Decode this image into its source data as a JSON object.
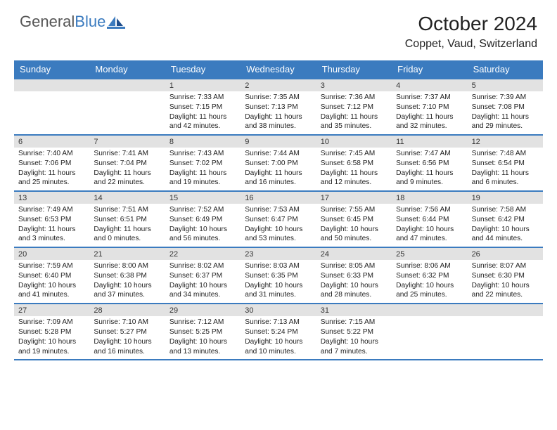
{
  "logo": {
    "word1": "General",
    "word2": "Blue"
  },
  "title": "October 2024",
  "location": "Coppet, Vaud, Switzerland",
  "colors": {
    "brand_blue": "#3b7bbf",
    "header_text": "#555555",
    "strip_bg": "#e2e2e2",
    "text": "#222222",
    "white": "#ffffff"
  },
  "days_of_week": [
    "Sunday",
    "Monday",
    "Tuesday",
    "Wednesday",
    "Thursday",
    "Friday",
    "Saturday"
  ],
  "weeks": [
    [
      {
        "num": "",
        "sunrise": "",
        "sunset": "",
        "daylight": ""
      },
      {
        "num": "",
        "sunrise": "",
        "sunset": "",
        "daylight": ""
      },
      {
        "num": "1",
        "sunrise": "Sunrise: 7:33 AM",
        "sunset": "Sunset: 7:15 PM",
        "daylight": "Daylight: 11 hours and 42 minutes."
      },
      {
        "num": "2",
        "sunrise": "Sunrise: 7:35 AM",
        "sunset": "Sunset: 7:13 PM",
        "daylight": "Daylight: 11 hours and 38 minutes."
      },
      {
        "num": "3",
        "sunrise": "Sunrise: 7:36 AM",
        "sunset": "Sunset: 7:12 PM",
        "daylight": "Daylight: 11 hours and 35 minutes."
      },
      {
        "num": "4",
        "sunrise": "Sunrise: 7:37 AM",
        "sunset": "Sunset: 7:10 PM",
        "daylight": "Daylight: 11 hours and 32 minutes."
      },
      {
        "num": "5",
        "sunrise": "Sunrise: 7:39 AM",
        "sunset": "Sunset: 7:08 PM",
        "daylight": "Daylight: 11 hours and 29 minutes."
      }
    ],
    [
      {
        "num": "6",
        "sunrise": "Sunrise: 7:40 AM",
        "sunset": "Sunset: 7:06 PM",
        "daylight": "Daylight: 11 hours and 25 minutes."
      },
      {
        "num": "7",
        "sunrise": "Sunrise: 7:41 AM",
        "sunset": "Sunset: 7:04 PM",
        "daylight": "Daylight: 11 hours and 22 minutes."
      },
      {
        "num": "8",
        "sunrise": "Sunrise: 7:43 AM",
        "sunset": "Sunset: 7:02 PM",
        "daylight": "Daylight: 11 hours and 19 minutes."
      },
      {
        "num": "9",
        "sunrise": "Sunrise: 7:44 AM",
        "sunset": "Sunset: 7:00 PM",
        "daylight": "Daylight: 11 hours and 16 minutes."
      },
      {
        "num": "10",
        "sunrise": "Sunrise: 7:45 AM",
        "sunset": "Sunset: 6:58 PM",
        "daylight": "Daylight: 11 hours and 12 minutes."
      },
      {
        "num": "11",
        "sunrise": "Sunrise: 7:47 AM",
        "sunset": "Sunset: 6:56 PM",
        "daylight": "Daylight: 11 hours and 9 minutes."
      },
      {
        "num": "12",
        "sunrise": "Sunrise: 7:48 AM",
        "sunset": "Sunset: 6:54 PM",
        "daylight": "Daylight: 11 hours and 6 minutes."
      }
    ],
    [
      {
        "num": "13",
        "sunrise": "Sunrise: 7:49 AM",
        "sunset": "Sunset: 6:53 PM",
        "daylight": "Daylight: 11 hours and 3 minutes."
      },
      {
        "num": "14",
        "sunrise": "Sunrise: 7:51 AM",
        "sunset": "Sunset: 6:51 PM",
        "daylight": "Daylight: 11 hours and 0 minutes."
      },
      {
        "num": "15",
        "sunrise": "Sunrise: 7:52 AM",
        "sunset": "Sunset: 6:49 PM",
        "daylight": "Daylight: 10 hours and 56 minutes."
      },
      {
        "num": "16",
        "sunrise": "Sunrise: 7:53 AM",
        "sunset": "Sunset: 6:47 PM",
        "daylight": "Daylight: 10 hours and 53 minutes."
      },
      {
        "num": "17",
        "sunrise": "Sunrise: 7:55 AM",
        "sunset": "Sunset: 6:45 PM",
        "daylight": "Daylight: 10 hours and 50 minutes."
      },
      {
        "num": "18",
        "sunrise": "Sunrise: 7:56 AM",
        "sunset": "Sunset: 6:44 PM",
        "daylight": "Daylight: 10 hours and 47 minutes."
      },
      {
        "num": "19",
        "sunrise": "Sunrise: 7:58 AM",
        "sunset": "Sunset: 6:42 PM",
        "daylight": "Daylight: 10 hours and 44 minutes."
      }
    ],
    [
      {
        "num": "20",
        "sunrise": "Sunrise: 7:59 AM",
        "sunset": "Sunset: 6:40 PM",
        "daylight": "Daylight: 10 hours and 41 minutes."
      },
      {
        "num": "21",
        "sunrise": "Sunrise: 8:00 AM",
        "sunset": "Sunset: 6:38 PM",
        "daylight": "Daylight: 10 hours and 37 minutes."
      },
      {
        "num": "22",
        "sunrise": "Sunrise: 8:02 AM",
        "sunset": "Sunset: 6:37 PM",
        "daylight": "Daylight: 10 hours and 34 minutes."
      },
      {
        "num": "23",
        "sunrise": "Sunrise: 8:03 AM",
        "sunset": "Sunset: 6:35 PM",
        "daylight": "Daylight: 10 hours and 31 minutes."
      },
      {
        "num": "24",
        "sunrise": "Sunrise: 8:05 AM",
        "sunset": "Sunset: 6:33 PM",
        "daylight": "Daylight: 10 hours and 28 minutes."
      },
      {
        "num": "25",
        "sunrise": "Sunrise: 8:06 AM",
        "sunset": "Sunset: 6:32 PM",
        "daylight": "Daylight: 10 hours and 25 minutes."
      },
      {
        "num": "26",
        "sunrise": "Sunrise: 8:07 AM",
        "sunset": "Sunset: 6:30 PM",
        "daylight": "Daylight: 10 hours and 22 minutes."
      }
    ],
    [
      {
        "num": "27",
        "sunrise": "Sunrise: 7:09 AM",
        "sunset": "Sunset: 5:28 PM",
        "daylight": "Daylight: 10 hours and 19 minutes."
      },
      {
        "num": "28",
        "sunrise": "Sunrise: 7:10 AM",
        "sunset": "Sunset: 5:27 PM",
        "daylight": "Daylight: 10 hours and 16 minutes."
      },
      {
        "num": "29",
        "sunrise": "Sunrise: 7:12 AM",
        "sunset": "Sunset: 5:25 PM",
        "daylight": "Daylight: 10 hours and 13 minutes."
      },
      {
        "num": "30",
        "sunrise": "Sunrise: 7:13 AM",
        "sunset": "Sunset: 5:24 PM",
        "daylight": "Daylight: 10 hours and 10 minutes."
      },
      {
        "num": "31",
        "sunrise": "Sunrise: 7:15 AM",
        "sunset": "Sunset: 5:22 PM",
        "daylight": "Daylight: 10 hours and 7 minutes."
      },
      {
        "num": "",
        "sunrise": "",
        "sunset": "",
        "daylight": ""
      },
      {
        "num": "",
        "sunrise": "",
        "sunset": "",
        "daylight": ""
      }
    ]
  ]
}
